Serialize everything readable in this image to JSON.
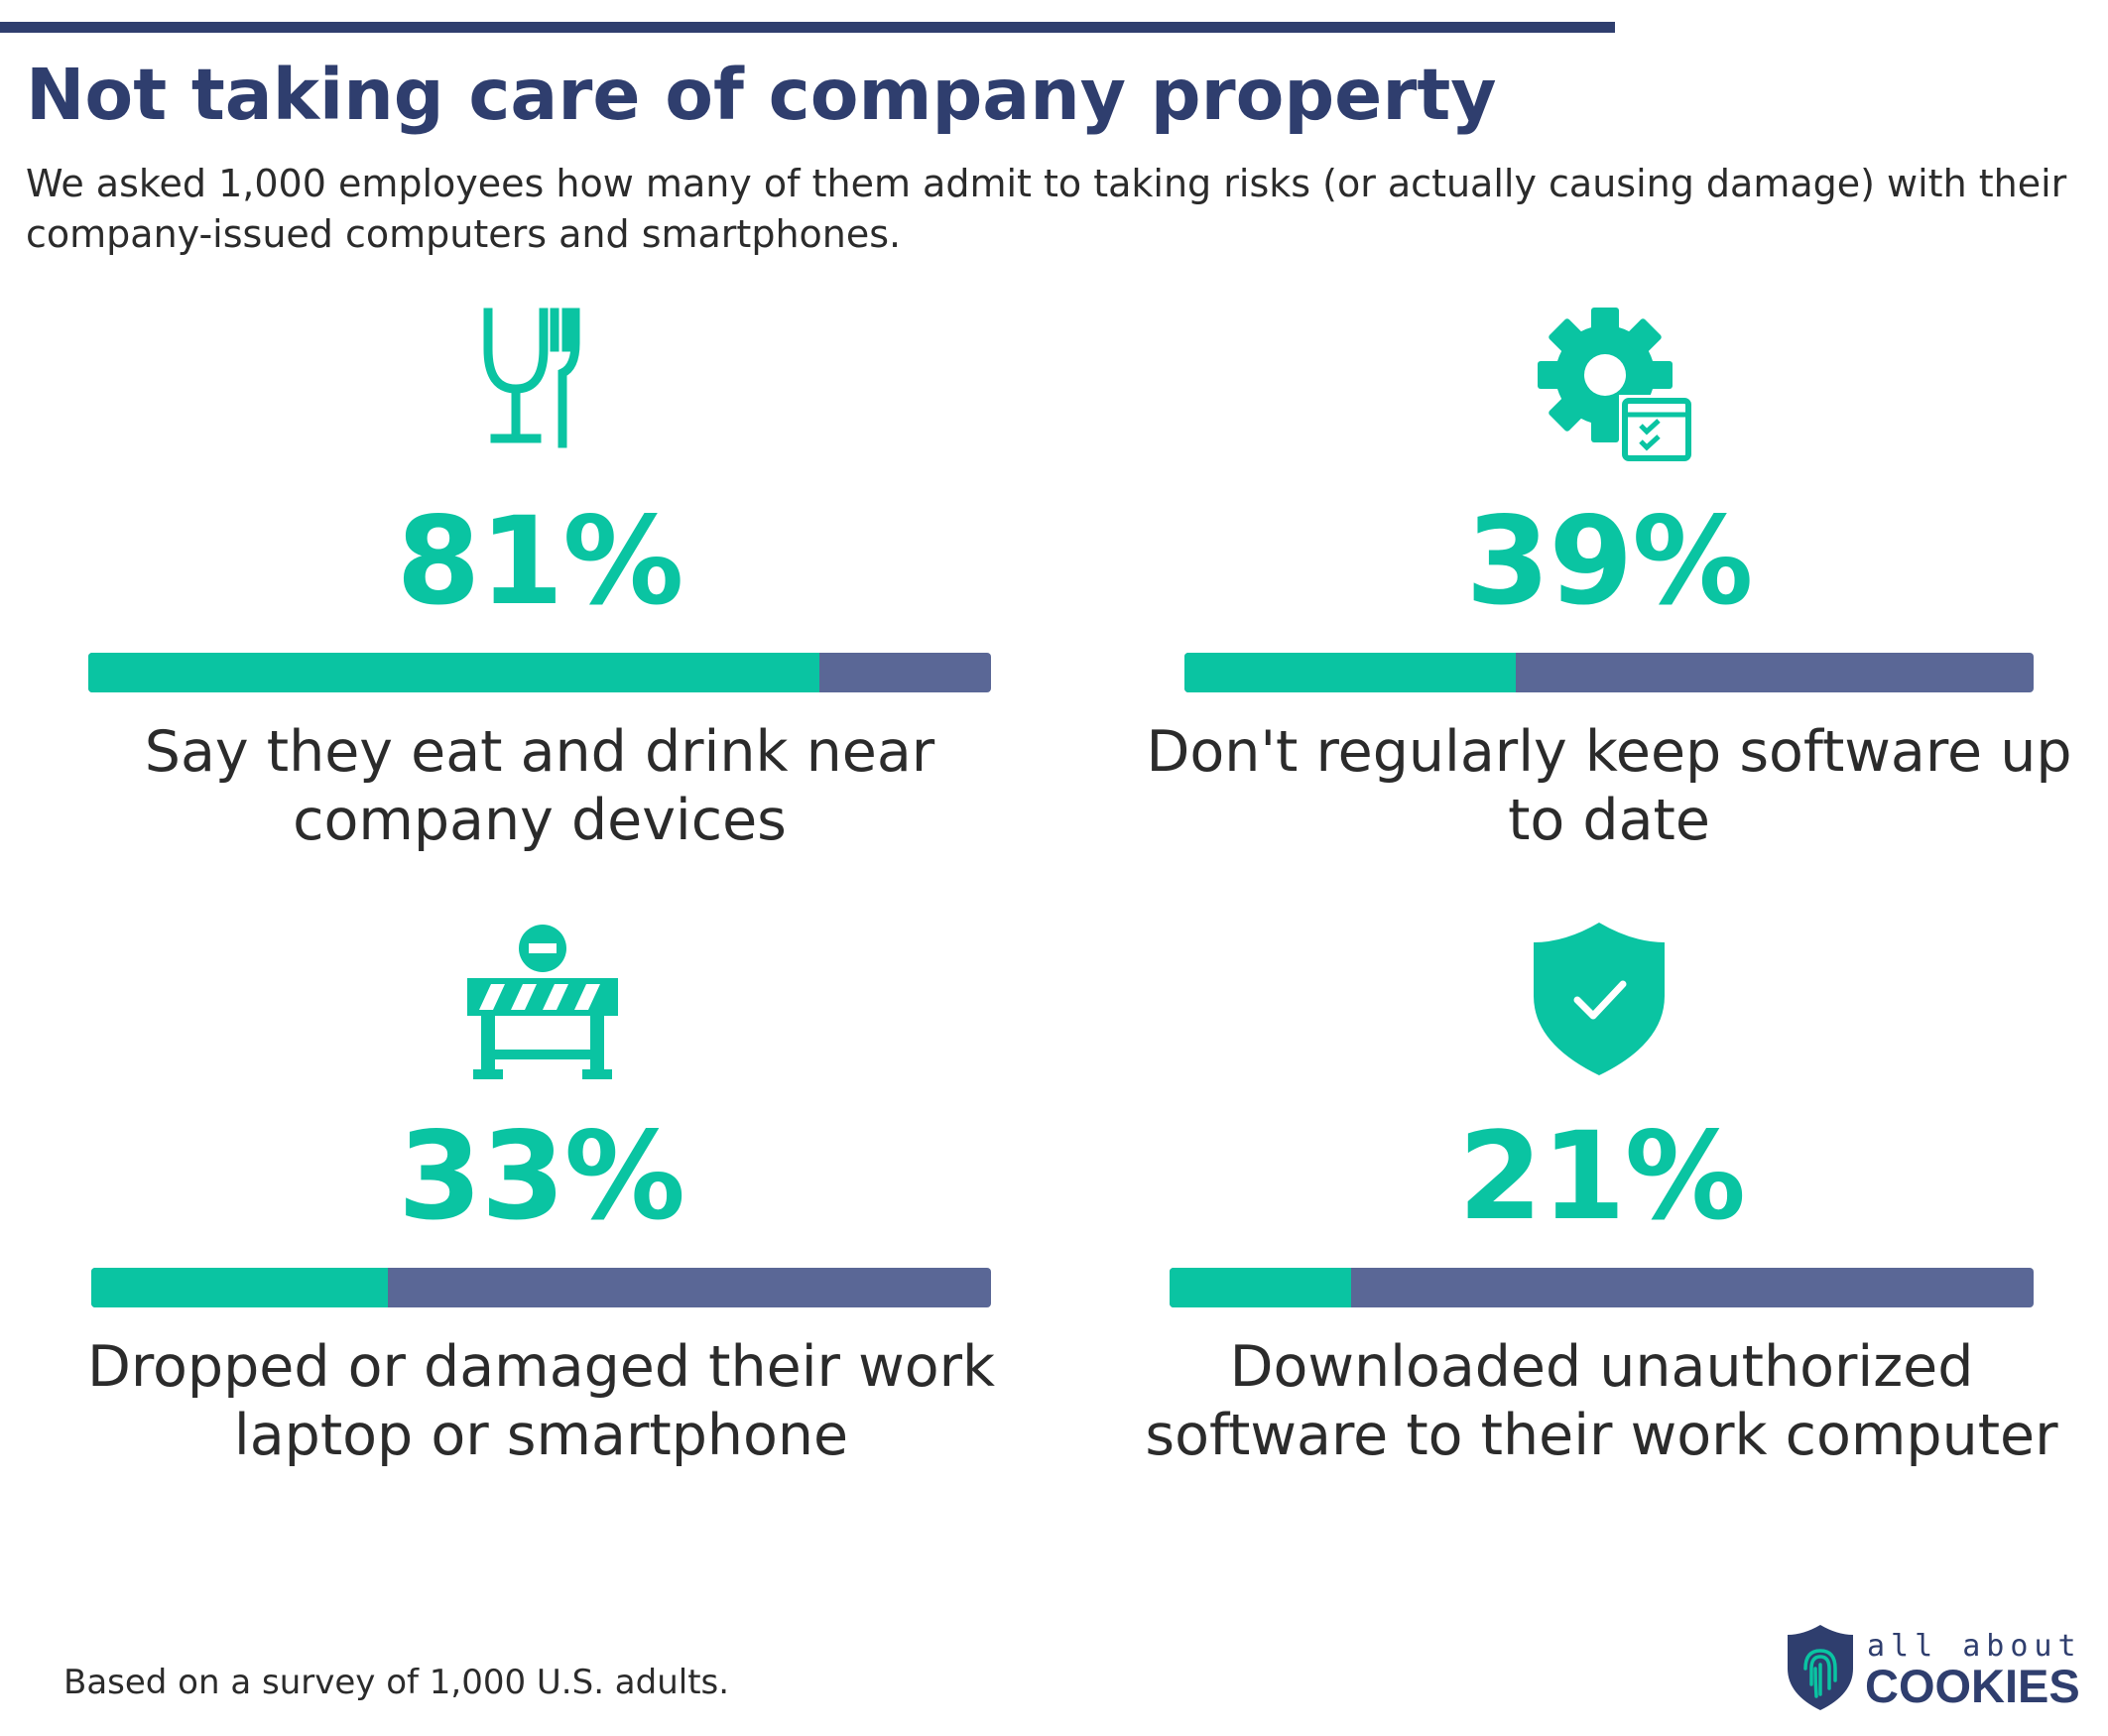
{
  "header": {
    "title": "Not taking care of company property",
    "subtitle": "We asked 1,000 employees how many of them admit to taking risks (or actually causing damage) with their company-issued computers and smartphones."
  },
  "colors": {
    "accent": "#0ac4a2",
    "bar_track": "#5a6796",
    "title": "#2f3e6e",
    "text": "#2b2b2b"
  },
  "chart_data": {
    "type": "bar",
    "title": "Not taking care of company property",
    "items": [
      {
        "value": 81,
        "display": "81%",
        "label": "Say they eat and drink near company devices",
        "icon": "food-drink-icon"
      },
      {
        "value": 39,
        "display": "39%",
        "label": "Don't regularly keep software up to date",
        "icon": "gear-update-icon"
      },
      {
        "value": 33,
        "display": "33%",
        "label": "Dropped or damaged their work laptop or smartphone",
        "icon": "barrier-icon"
      },
      {
        "value": 21,
        "display": "21%",
        "label": "Downloaded unauthorized software to their work computer",
        "icon": "shield-check-icon"
      }
    ],
    "ylim": [
      0,
      100
    ]
  },
  "footer": {
    "note": "Based on a survey of 1,000 U.S. adults.",
    "logo_top": "all about",
    "logo_bottom": "COOKIES",
    "logo_icon": "shield-fingerprint-icon"
  }
}
